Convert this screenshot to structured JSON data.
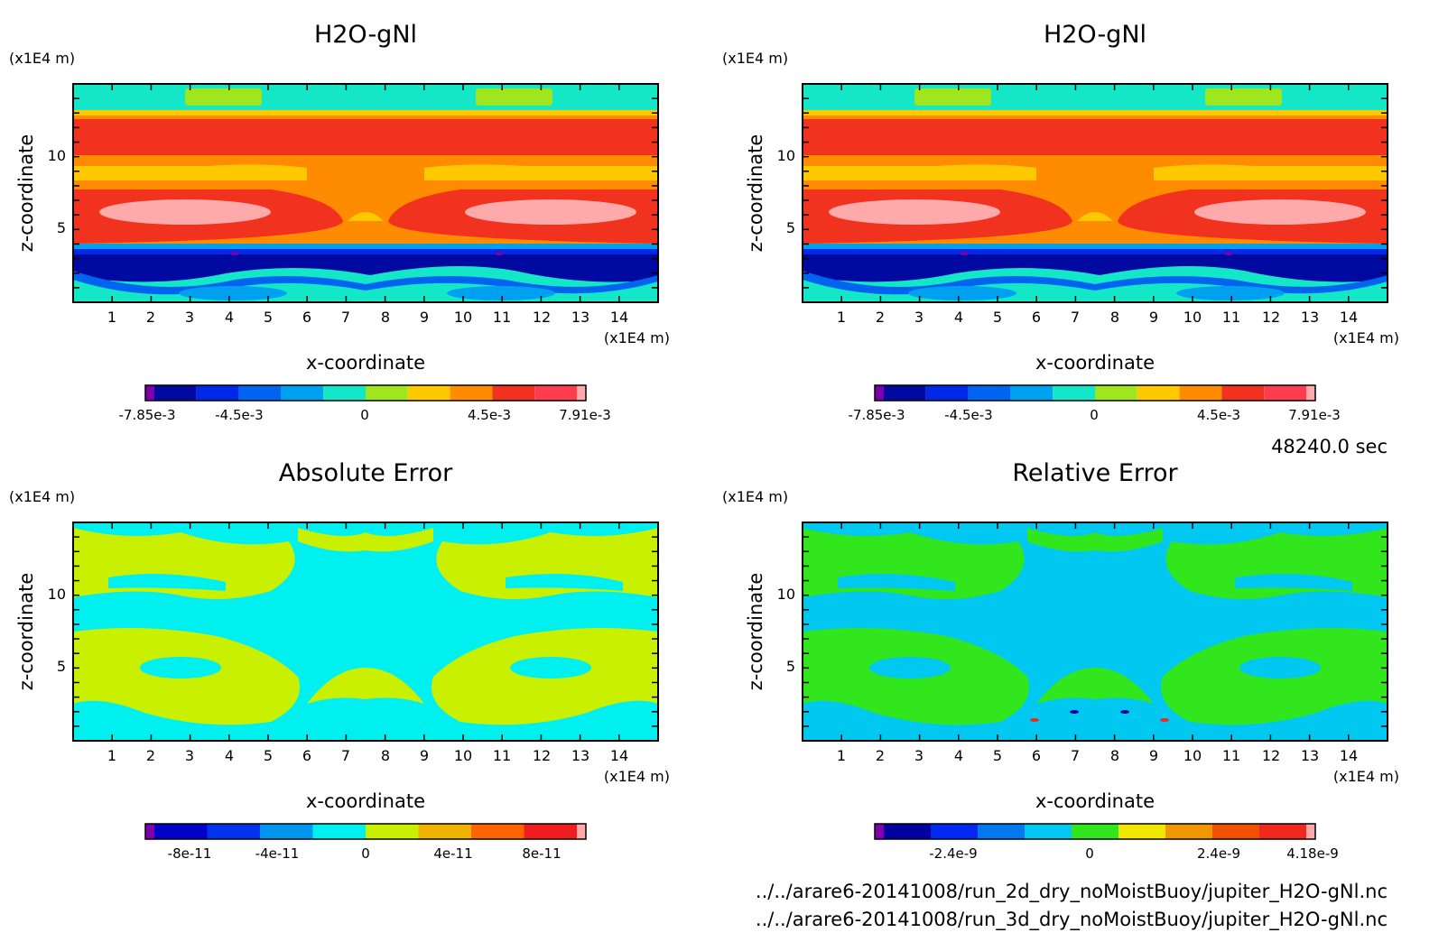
{
  "chart_data": [
    {
      "type": "heatmap",
      "title": "H2O-gNl",
      "xlabel": "x-coordinate",
      "ylabel": "z-coordinate",
      "x_unit": "(x1E4 m)",
      "y_unit": "(x1E4 m)",
      "xlim": [
        0,
        15
      ],
      "ylim": [
        0,
        15
      ],
      "x_ticks": [
        "1",
        "2",
        "3",
        "4",
        "5",
        "6",
        "7",
        "8",
        "9",
        "10",
        "11",
        "12",
        "13",
        "14"
      ],
      "y_ticks": [
        "5",
        "10"
      ],
      "colorbar": {
        "colors": [
          "#7a00aa",
          "#000aa0",
          "#0028e6",
          "#0064f0",
          "#00a0f0",
          "#14e6c8",
          "#a0e61e",
          "#ffc800",
          "#ff8c00",
          "#f0321e",
          "#ff3c50",
          "#ffaaaa"
        ],
        "labels": [
          "-7.85e-3",
          "-4.5e-3",
          "0",
          "4.5e-3",
          "7.91e-3"
        ]
      }
    },
    {
      "type": "heatmap",
      "title": "H2O-gNl",
      "xlabel": "x-coordinate",
      "ylabel": "z-coordinate",
      "x_unit": "(x1E4 m)",
      "y_unit": "(x1E4 m)",
      "xlim": [
        0,
        15
      ],
      "ylim": [
        0,
        15
      ],
      "x_ticks": [
        "1",
        "2",
        "3",
        "4",
        "5",
        "6",
        "7",
        "8",
        "9",
        "10",
        "11",
        "12",
        "13",
        "14"
      ],
      "y_ticks": [
        "5",
        "10"
      ],
      "colorbar": {
        "colors": [
          "#7a00aa",
          "#000aa0",
          "#0028e6",
          "#0064f0",
          "#00a0f0",
          "#14e6c8",
          "#a0e61e",
          "#ffc800",
          "#ff8c00",
          "#f0321e",
          "#ff3c50",
          "#ffaaaa"
        ],
        "labels": [
          "-7.85e-3",
          "-4.5e-3",
          "0",
          "4.5e-3",
          "7.91e-3"
        ]
      }
    },
    {
      "type": "heatmap",
      "title": "Absolute Error",
      "xlabel": "x-coordinate",
      "ylabel": "z-coordinate",
      "x_unit": "(x1E4 m)",
      "y_unit": "(x1E4 m)",
      "xlim": [
        0,
        15
      ],
      "ylim": [
        0,
        15
      ],
      "x_ticks": [
        "1",
        "2",
        "3",
        "4",
        "5",
        "6",
        "7",
        "8",
        "9",
        "10",
        "11",
        "12",
        "13",
        "14"
      ],
      "y_ticks": [
        "5",
        "10"
      ],
      "colorbar": {
        "colors": [
          "#8200aa",
          "#0000c8",
          "#0032f0",
          "#0096f0",
          "#00f0f0",
          "#c8f000",
          "#f0b400",
          "#ff6400",
          "#f01e1e",
          "#ffaaaa"
        ],
        "labels": [
          "-8e-11",
          "-4e-11",
          "0",
          "4e-11",
          "8e-11"
        ]
      }
    },
    {
      "type": "heatmap",
      "title": "Relative Error",
      "xlabel": "x-coordinate",
      "ylabel": "z-coordinate",
      "x_unit": "(x1E4 m)",
      "y_unit": "(x1E4 m)",
      "xlim": [
        0,
        15
      ],
      "ylim": [
        0,
        15
      ],
      "x_ticks": [
        "1",
        "2",
        "3",
        "4",
        "5",
        "6",
        "7",
        "8",
        "9",
        "10",
        "11",
        "12",
        "13",
        "14"
      ],
      "y_ticks": [
        "5",
        "10"
      ],
      "colorbar": {
        "colors": [
          "#8200aa",
          "#0000a0",
          "#0028f0",
          "#0078f0",
          "#00c8f0",
          "#32e61e",
          "#f0e600",
          "#f09600",
          "#f05000",
          "#f0281e",
          "#ffaaaa"
        ],
        "labels": [
          "-2.4e-9",
          "0",
          "2.4e-9",
          "4.18e-9"
        ]
      }
    }
  ],
  "time_label": "48240.0 sec",
  "files": [
    "../../arare6-20141008/run_2d_dry_noMoistBuoy/jupiter_H2O-gNl.nc",
    "../../arare6-20141008/run_3d_dry_noMoistBuoy/jupiter_H2O-gNl.nc"
  ]
}
